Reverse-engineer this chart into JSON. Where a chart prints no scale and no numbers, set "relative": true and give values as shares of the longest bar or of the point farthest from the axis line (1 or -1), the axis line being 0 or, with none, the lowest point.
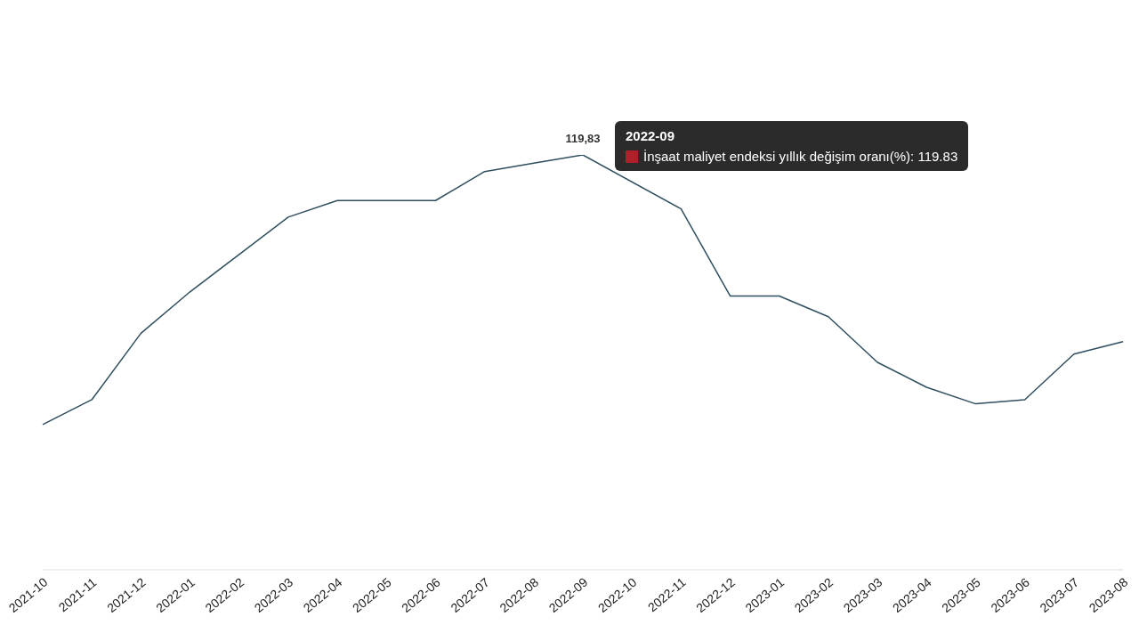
{
  "chart_data": {
    "type": "line",
    "relative": true,
    "categories": [
      "2021-10",
      "2021-11",
      "2021-12",
      "2022-01",
      "2022-02",
      "2022-03",
      "2022-04",
      "2022-05",
      "2022-06",
      "2022-07",
      "2022-08",
      "2022-09",
      "2022-10",
      "2022-11",
      "2022-12",
      "2023-01",
      "2023-02",
      "2023-03",
      "2023-04",
      "2023-05",
      "2023-06",
      "2023-07",
      "2023-08"
    ],
    "series": [
      {
        "color": "#2f4f5f",
        "values": [
          0.35,
          0.41,
          0.57,
          0.67,
          0.76,
          0.85,
          0.89,
          0.89,
          0.89,
          0.96,
          0.98,
          1,
          null,
          0.87,
          0.66,
          0.66,
          0.61,
          0.5,
          0.44,
          0.4,
          0.41,
          0.52,
          0.55
        ]
      }
    ],
    "annotations": [
      {
        "text": "119,83",
        "x": "2022-09",
        "y": 1
      },
      "2022-09",
      "İnşaat maliyet endeksi yıllık değişim oranı(%): 119.83"
    ],
    "grid": false,
    "legend": false,
    "marker": "none",
    "line_style": "solid"
  }
}
